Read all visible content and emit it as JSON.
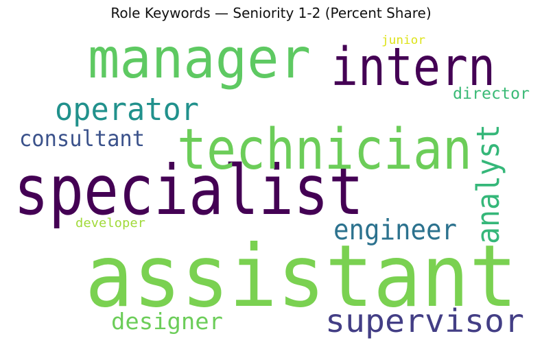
{
  "chart_data": {
    "type": "wordcloud",
    "title": "Role Keywords — Seniority 1-2 (Percent Share)",
    "words": [
      {
        "text": "assistant",
        "color": "#7ad151"
      },
      {
        "text": "specialist",
        "color": "#440154"
      },
      {
        "text": "technician",
        "color": "#6ccd59"
      },
      {
        "text": "manager",
        "color": "#5ec962"
      },
      {
        "text": "intern",
        "color": "#440154"
      },
      {
        "text": "supervisor",
        "color": "#433e85"
      },
      {
        "text": "operator",
        "color": "#21918c"
      },
      {
        "text": "engineer",
        "color": "#2c728e"
      },
      {
        "text": "analyst",
        "color": "#35b779"
      },
      {
        "text": "consultant",
        "color": "#3b528b"
      },
      {
        "text": "designer",
        "color": "#6ccd59"
      },
      {
        "text": "director",
        "color": "#3aba76"
      },
      {
        "text": "developer",
        "color": "#a0da39"
      },
      {
        "text": "junior",
        "color": "#dde318"
      }
    ]
  }
}
